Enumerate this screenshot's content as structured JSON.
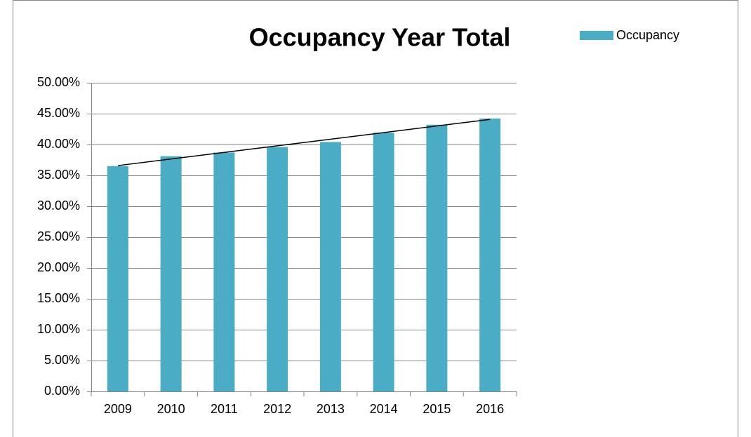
{
  "chart_data": {
    "type": "bar",
    "title": "Occupancy Year Total",
    "categories": [
      "2009",
      "2010",
      "2011",
      "2012",
      "2013",
      "2014",
      "2015",
      "2016"
    ],
    "series": [
      {
        "name": "Occupancy",
        "color": "#4bacc6",
        "values": [
          36.5,
          38.1,
          38.7,
          39.6,
          40.4,
          41.9,
          43.2,
          44.2
        ]
      }
    ],
    "ylim": [
      0,
      50
    ],
    "yticks": [
      {
        "value": 0,
        "label": "0.00%"
      },
      {
        "value": 5,
        "label": "5.00%"
      },
      {
        "value": 10,
        "label": "10.00%"
      },
      {
        "value": 15,
        "label": "15.00%"
      },
      {
        "value": 20,
        "label": "20.00%"
      },
      {
        "value": 25,
        "label": "25.00%"
      },
      {
        "value": 30,
        "label": "30.00%"
      },
      {
        "value": 35,
        "label": "35.00%"
      },
      {
        "value": 40,
        "label": "40.00%"
      },
      {
        "value": 45,
        "label": "45.00%"
      },
      {
        "value": 50,
        "label": "50.00%"
      }
    ],
    "grid": true,
    "trendline": true,
    "legend": "top-right"
  }
}
